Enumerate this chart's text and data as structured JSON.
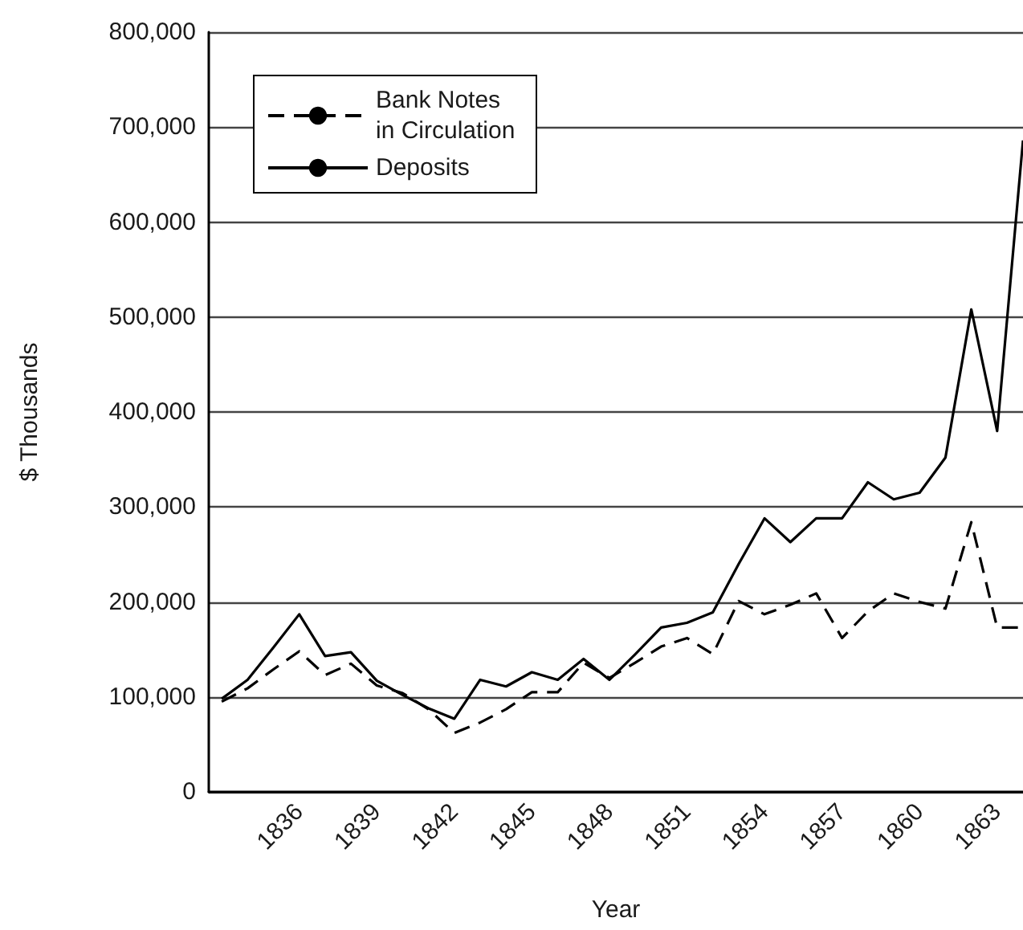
{
  "chart_data": {
    "type": "line",
    "xlabel": "Year",
    "ylabel": "$ Thousands",
    "x": [
      1833,
      1834,
      1835,
      1836,
      1837,
      1838,
      1839,
      1840,
      1841,
      1842,
      1843,
      1844,
      1845,
      1846,
      1847,
      1848,
      1849,
      1850,
      1851,
      1852,
      1853,
      1854,
      1855,
      1856,
      1857,
      1858,
      1859,
      1860,
      1861,
      1862,
      1863,
      1864
    ],
    "series": [
      {
        "name": "Bank Notes in Circulation",
        "color": "#000000",
        "line_style": "dashed",
        "values": [
          95000,
          109000,
          129000,
          148000,
          123000,
          135000,
          112000,
          104000,
          87000,
          62000,
          73000,
          87000,
          105000,
          105000,
          136000,
          120000,
          136000,
          153000,
          162000,
          145000,
          201000,
          187000,
          197000,
          209000,
          162000,
          190000,
          209000,
          200000,
          193000,
          284000,
          173000,
          173000
        ]
      },
      {
        "name": "Deposits",
        "color": "#000000",
        "line_style": "solid",
        "values": [
          98000,
          118000,
          152000,
          187000,
          143000,
          147000,
          117000,
          102000,
          88000,
          77000,
          118000,
          111000,
          126000,
          118000,
          140000,
          118000,
          145000,
          173000,
          178000,
          189000,
          240000,
          288000,
          263000,
          288000,
          288000,
          326000,
          308000,
          315000,
          352000,
          508000,
          380000,
          686000
        ]
      }
    ],
    "xlim": [
      1832.5,
      1864
    ],
    "xticks": [
      1836,
      1839,
      1842,
      1845,
      1848,
      1851,
      1854,
      1857,
      1860,
      1863
    ],
    "ylim": [
      0,
      800000
    ],
    "yticks": [
      {
        "value": 0,
        "label": "0"
      },
      {
        "value": 100000,
        "label": "100,000"
      },
      {
        "value": 200000,
        "label": "200,000"
      },
      {
        "value": 300000,
        "label": "300,000"
      },
      {
        "value": 400000,
        "label": "400,000"
      },
      {
        "value": 500000,
        "label": "500,000"
      },
      {
        "value": 600000,
        "label": "600,000"
      },
      {
        "value": 700000,
        "label": "700,000"
      },
      {
        "value": 800000,
        "label": "800,000"
      }
    ],
    "grid": "y",
    "legend": "top left",
    "marker": "none"
  }
}
